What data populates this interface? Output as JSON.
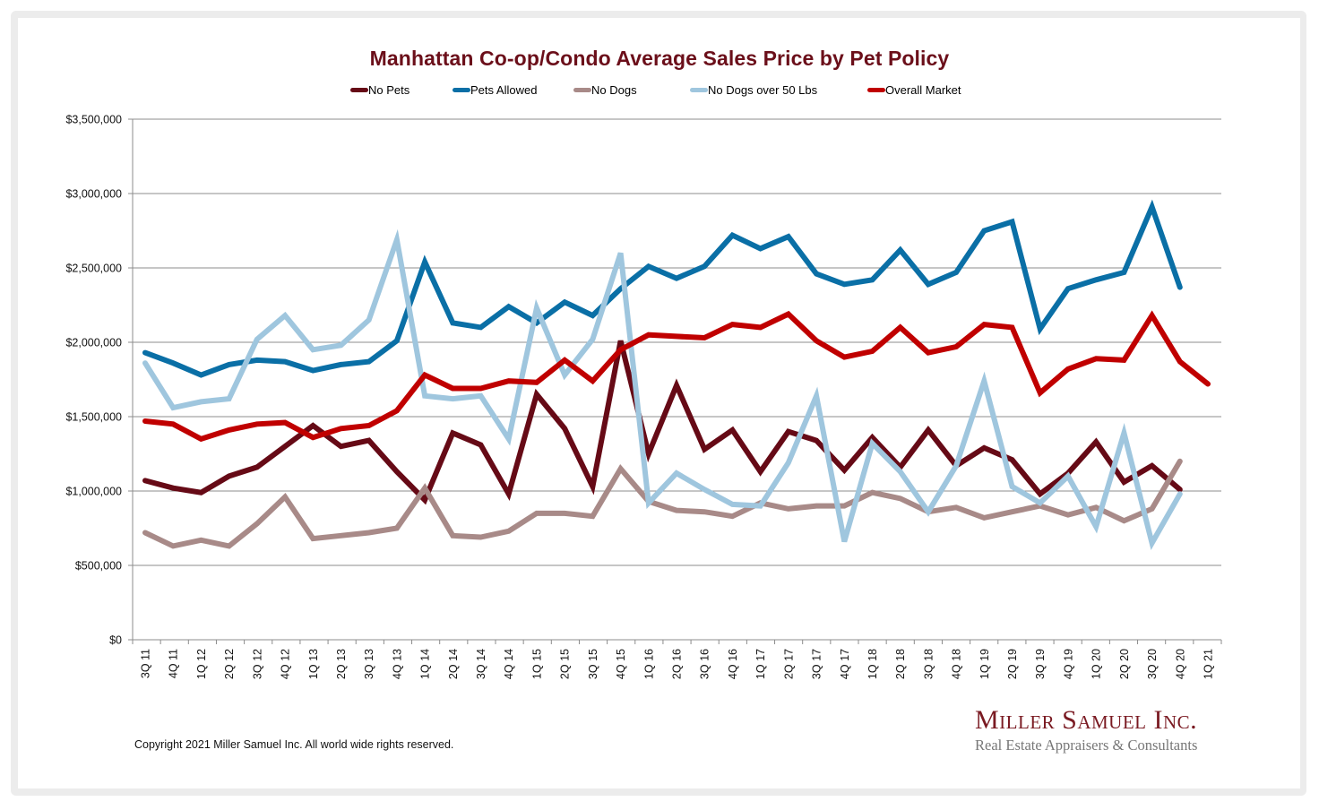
{
  "chart_data": {
    "type": "line",
    "title": "Manhattan Co-op/Condo Average Sales Price by Pet Policy",
    "xlabel": "",
    "ylabel": "",
    "ylim": [
      0,
      3500000
    ],
    "yticks": [
      0,
      500000,
      1000000,
      1500000,
      2000000,
      2500000,
      3000000,
      3500000
    ],
    "ytick_labels": [
      "$0",
      "$500,000",
      "$1,000,000",
      "$1,500,000",
      "$2,000,000",
      "$2,500,000",
      "$3,000,000",
      "$3,500,000"
    ],
    "grid": true,
    "legend_position": "top-center",
    "categories": [
      "3Q 11",
      "4Q 11",
      "1Q 12",
      "2Q 12",
      "3Q 12",
      "4Q 12",
      "1Q 13",
      "2Q 13",
      "3Q 13",
      "4Q 13",
      "1Q 14",
      "2Q 14",
      "3Q 14",
      "4Q 14",
      "1Q 15",
      "2Q 15",
      "3Q 15",
      "4Q 15",
      "1Q 16",
      "2Q 16",
      "3Q 16",
      "4Q 16",
      "1Q 17",
      "2Q 17",
      "3Q 17",
      "4Q 17",
      "1Q 18",
      "2Q 18",
      "3Q 18",
      "4Q 18",
      "1Q 19",
      "2Q 19",
      "3Q 19",
      "4Q 19",
      "1Q 20",
      "2Q 20",
      "3Q 20",
      "4Q 20",
      "1Q 21"
    ],
    "series": [
      {
        "name": "No Pets",
        "color": "#660a16",
        "values": [
          1070000,
          1020000,
          990000,
          1100000,
          1160000,
          1300000,
          1440000,
          1300000,
          1340000,
          1130000,
          940000,
          1390000,
          1310000,
          980000,
          1650000,
          1420000,
          1030000,
          2010000,
          1250000,
          1710000,
          1280000,
          1410000,
          1130000,
          1400000,
          1340000,
          1140000,
          1360000,
          1160000,
          1410000,
          1170000,
          1290000,
          1210000,
          980000,
          1120000,
          1330000,
          1060000,
          1170000,
          1010000,
          null
        ]
      },
      {
        "name": "Pets Allowed",
        "color": "#0a6fa6",
        "values": [
          1930000,
          1860000,
          1780000,
          1850000,
          1880000,
          1870000,
          1810000,
          1850000,
          1870000,
          2010000,
          2540000,
          2130000,
          2100000,
          2240000,
          2130000,
          2270000,
          2180000,
          2360000,
          2510000,
          2430000,
          2510000,
          2720000,
          2630000,
          2710000,
          2460000,
          2390000,
          2420000,
          2620000,
          2390000,
          2470000,
          2750000,
          2810000,
          2090000,
          2360000,
          2420000,
          2470000,
          2910000,
          2370000,
          null
        ]
      },
      {
        "name": "No Dogs",
        "color": "#a88a88",
        "values": [
          720000,
          630000,
          670000,
          630000,
          780000,
          960000,
          680000,
          700000,
          720000,
          750000,
          1020000,
          700000,
          690000,
          730000,
          850000,
          850000,
          830000,
          1150000,
          930000,
          870000,
          860000,
          830000,
          920000,
          880000,
          900000,
          900000,
          990000,
          950000,
          860000,
          890000,
          820000,
          860000,
          900000,
          840000,
          890000,
          800000,
          880000,
          1200000,
          null
        ]
      },
      {
        "name": "No Dogs over 50 Lbs",
        "color": "#9fc6de",
        "values": [
          1860000,
          1560000,
          1600000,
          1620000,
          2020000,
          2180000,
          1950000,
          1980000,
          2150000,
          2690000,
          1640000,
          1620000,
          1640000,
          1350000,
          2230000,
          1780000,
          2020000,
          2600000,
          920000,
          1120000,
          1010000,
          910000,
          900000,
          1190000,
          1640000,
          660000,
          1320000,
          1130000,
          860000,
          1170000,
          1740000,
          1030000,
          920000,
          1100000,
          760000,
          1390000,
          650000,
          980000,
          null
        ]
      },
      {
        "name": "Overall Market",
        "color": "#c00000",
        "values": [
          1470000,
          1450000,
          1350000,
          1410000,
          1450000,
          1460000,
          1360000,
          1420000,
          1440000,
          1540000,
          1780000,
          1690000,
          1690000,
          1740000,
          1730000,
          1880000,
          1740000,
          1950000,
          2050000,
          2040000,
          2030000,
          2120000,
          2100000,
          2190000,
          2010000,
          1900000,
          1940000,
          2100000,
          1930000,
          1970000,
          2120000,
          2100000,
          1660000,
          1820000,
          1890000,
          1880000,
          2180000,
          1870000,
          1720000
        ]
      }
    ]
  },
  "footer": {
    "copyright": "Copyright 2021 Miller Samuel Inc.  All world wide rights reserved.",
    "brand_name": "Miller Samuel Inc.",
    "brand_tagline": "Real Estate Appraisers & Consultants"
  }
}
